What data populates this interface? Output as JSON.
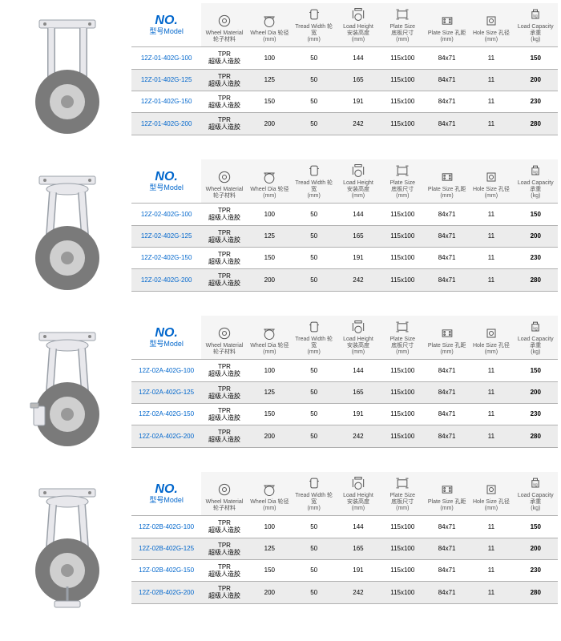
{
  "headers": {
    "no_label": "NO.",
    "model_label": "型号Model",
    "cols": [
      {
        "top": "Wheel Material",
        "bot": "轮子材料"
      },
      {
        "top": "Wheel Dia 轮径",
        "bot": "(mm)"
      },
      {
        "top": "Tread Width 轮宽",
        "bot": "(mm)"
      },
      {
        "top": "Load Height",
        "mid": "安装高度",
        "bot": "(mm)"
      },
      {
        "top": "Plate Size",
        "mid": "底板尺寸",
        "bot": "(mm)"
      },
      {
        "top": "Plate Size 孔距",
        "bot": "(mm)"
      },
      {
        "top": "Hole Size 孔径",
        "bot": "(mm)"
      },
      {
        "top": "Load Capacity",
        "mid": "承重",
        "bot": "(kg)"
      }
    ]
  },
  "material": {
    "line1": "TPR",
    "line2": "超级人造胶"
  },
  "sections": [
    {
      "caster_type": "rigid",
      "rows": [
        {
          "model": "12Z-01-402G-100",
          "dia": "100",
          "tw": "50",
          "lh": "144",
          "ps": "115x100",
          "pk": "84x71",
          "hs": "11",
          "cap": "150"
        },
        {
          "model": "12Z-01-402G-125",
          "dia": "125",
          "tw": "50",
          "lh": "165",
          "ps": "115x100",
          "pk": "84x71",
          "hs": "11",
          "cap": "200"
        },
        {
          "model": "12Z-01-402G-150",
          "dia": "150",
          "tw": "50",
          "lh": "191",
          "ps": "115x100",
          "pk": "84x71",
          "hs": "11",
          "cap": "230"
        },
        {
          "model": "12Z-01-402G-200",
          "dia": "200",
          "tw": "50",
          "lh": "242",
          "ps": "115x100",
          "pk": "84x71",
          "hs": "11",
          "cap": "280"
        }
      ]
    },
    {
      "caster_type": "swivel",
      "rows": [
        {
          "model": "12Z-02-402G-100",
          "dia": "100",
          "tw": "50",
          "lh": "144",
          "ps": "115x100",
          "pk": "84x71",
          "hs": "11",
          "cap": "150"
        },
        {
          "model": "12Z-02-402G-125",
          "dia": "125",
          "tw": "50",
          "lh": "165",
          "ps": "115x100",
          "pk": "84x71",
          "hs": "11",
          "cap": "200"
        },
        {
          "model": "12Z-02-402G-150",
          "dia": "150",
          "tw": "50",
          "lh": "191",
          "ps": "115x100",
          "pk": "84x71",
          "hs": "11",
          "cap": "230"
        },
        {
          "model": "12Z-02-402G-200",
          "dia": "200",
          "tw": "50",
          "lh": "242",
          "ps": "115x100",
          "pk": "84x71",
          "hs": "11",
          "cap": "280"
        }
      ]
    },
    {
      "caster_type": "swivel_side_brake",
      "rows": [
        {
          "model": "12Z-02A-402G-100",
          "dia": "100",
          "tw": "50",
          "lh": "144",
          "ps": "115x100",
          "pk": "84x71",
          "hs": "11",
          "cap": "150"
        },
        {
          "model": "12Z-02A-402G-125",
          "dia": "125",
          "tw": "50",
          "lh": "165",
          "ps": "115x100",
          "pk": "84x71",
          "hs": "11",
          "cap": "200"
        },
        {
          "model": "12Z-02A-402G-150",
          "dia": "150",
          "tw": "50",
          "lh": "191",
          "ps": "115x100",
          "pk": "84x71",
          "hs": "11",
          "cap": "230"
        },
        {
          "model": "12Z-02A-402G-200",
          "dia": "200",
          "tw": "50",
          "lh": "242",
          "ps": "115x100",
          "pk": "84x71",
          "hs": "11",
          "cap": "280"
        }
      ]
    },
    {
      "caster_type": "swivel_total_brake",
      "rows": [
        {
          "model": "12Z-02B-402G-100",
          "dia": "100",
          "tw": "50",
          "lh": "144",
          "ps": "115x100",
          "pk": "84x71",
          "hs": "11",
          "cap": "150"
        },
        {
          "model": "12Z-02B-402G-125",
          "dia": "125",
          "tw": "50",
          "lh": "165",
          "ps": "115x100",
          "pk": "84x71",
          "hs": "11",
          "cap": "200"
        },
        {
          "model": "12Z-02B-402G-150",
          "dia": "150",
          "tw": "50",
          "lh": "191",
          "ps": "115x100",
          "pk": "84x71",
          "hs": "11",
          "cap": "230"
        },
        {
          "model": "12Z-02B-402G-200",
          "dia": "200",
          "tw": "50",
          "lh": "242",
          "ps": "115x100",
          "pk": "84x71",
          "hs": "11",
          "cap": "280"
        }
      ]
    }
  ],
  "styling": {
    "link_color": "#0066cc",
    "alt_row_bg": "#ececec",
    "header_bg": "#f5f5f5",
    "border_color": "#b0b0b0",
    "wheel_color": "#7a7a7a",
    "wheel_hub": "#cfcfcf",
    "bracket": "#e8e8ec",
    "bracket_stroke": "#9aa0a8"
  }
}
